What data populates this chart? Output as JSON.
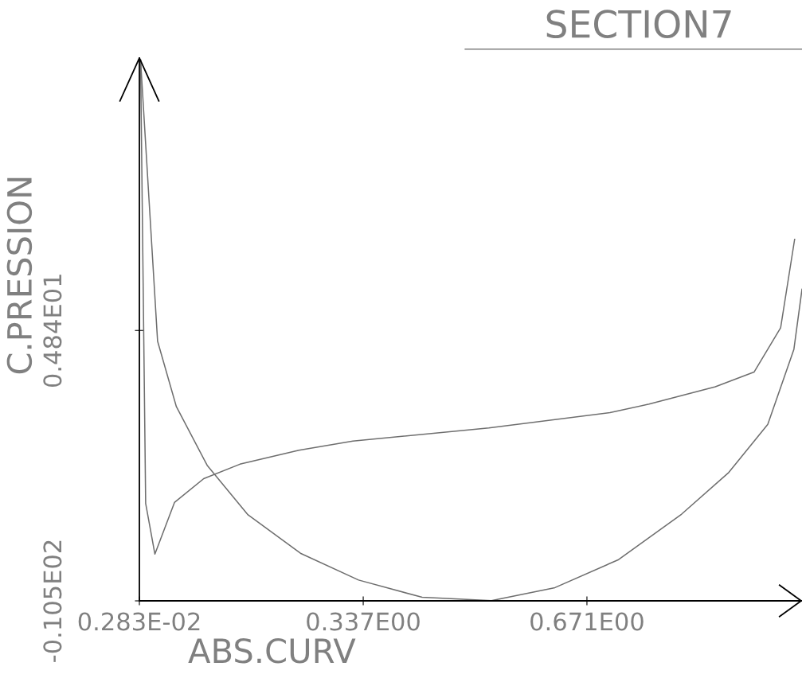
{
  "chart_data": {
    "type": "line",
    "title": "SECTION7",
    "xlabel": "ABS.CURV",
    "ylabel": "C.PRESSION",
    "xlim": [
      0.00283,
      0.9921
    ],
    "ylim": [
      -10.5,
      20.3
    ],
    "xticks": [
      {
        "value": 0.00283,
        "label": "0.283E-02"
      },
      {
        "value": 0.337,
        "label": "0.337E00"
      },
      {
        "value": 0.671,
        "label": "0.671E00"
      }
    ],
    "yticks": [
      {
        "value": -10.5,
        "label": "-0.105E02"
      },
      {
        "value": 4.84,
        "label": "0.484E01"
      }
    ],
    "grid": false,
    "marker": "none",
    "line_style": "solid",
    "series": [
      {
        "color": "#6e6e6e",
        "x": [
          0.0046,
          0.0122,
          0.026,
          0.0552,
          0.0988,
          0.1528,
          0.2411,
          0.3216,
          0.5245,
          0.7054,
          0.7638,
          0.8627,
          0.9205,
          0.9602,
          0.9811
        ],
        "values": [
          20.18,
          -4.97,
          -7.85,
          -4.92,
          -3.57,
          -2.75,
          -1.95,
          -1.44,
          -0.69,
          0.18,
          0.66,
          1.65,
          2.48,
          4.99,
          10.01
        ]
      },
      {
        "color": "#6e6e6e",
        "x": [
          0.0046,
          0.03,
          0.058,
          0.104,
          0.165,
          0.2433,
          0.3301,
          0.425,
          0.5284,
          0.6233,
          0.7183,
          0.8124,
          0.8829,
          0.941,
          0.98,
          0.9921
        ],
        "values": [
          20.18,
          4.23,
          0.52,
          -2.81,
          -5.62,
          -7.8,
          -9.32,
          -10.3,
          -10.49,
          -9.75,
          -8.16,
          -5.58,
          -3.21,
          -0.49,
          3.77,
          7.18
        ]
      }
    ]
  }
}
